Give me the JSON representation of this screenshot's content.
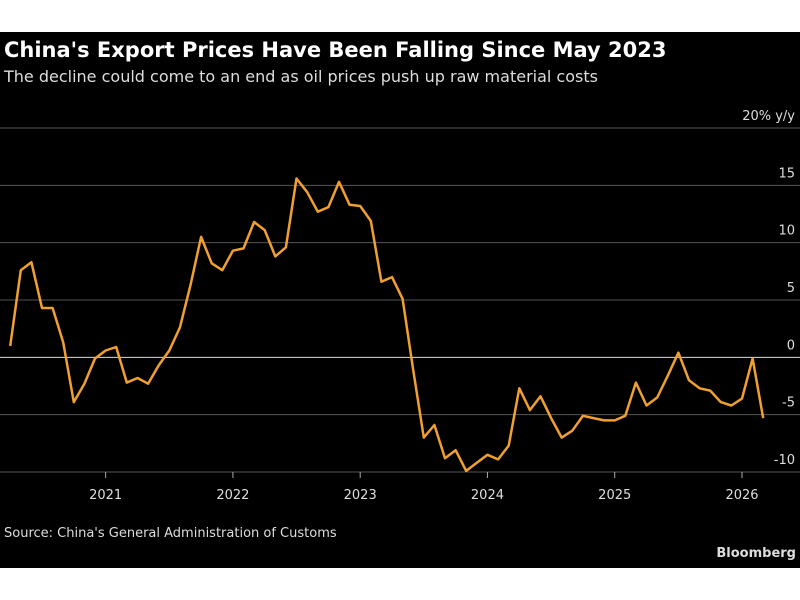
{
  "chart_data": {
    "type": "line",
    "title": "China's Export Prices Have Been Falling Since May 2023",
    "subtitle": "The decline could come to an end as oil prices push up raw material costs",
    "source": "Source: China's General Administration of Customs",
    "brand": "Bloomberg",
    "x": [
      "2020-04",
      "2020-05",
      "2020-06",
      "2020-07",
      "2020-08",
      "2020-09",
      "2020-10",
      "2020-11",
      "2020-12",
      "2021-01",
      "2021-02",
      "2021-03",
      "2021-04",
      "2021-05",
      "2021-06",
      "2021-07",
      "2021-08",
      "2021-09",
      "2021-10",
      "2021-11",
      "2021-12",
      "2022-01",
      "2022-02",
      "2022-03",
      "2022-04",
      "2022-05",
      "2022-06",
      "2022-07",
      "2022-08",
      "2022-09",
      "2022-10",
      "2022-11",
      "2022-12",
      "2023-01",
      "2023-02",
      "2023-03",
      "2023-04",
      "2023-05",
      "2023-06",
      "2023-07",
      "2023-08",
      "2023-09",
      "2023-10",
      "2023-11",
      "2023-12",
      "2024-01",
      "2024-02",
      "2024-03",
      "2024-04",
      "2024-05",
      "2024-06",
      "2024-07",
      "2024-08",
      "2024-09",
      "2024-10",
      "2024-11",
      "2024-12",
      "2025-01",
      "2025-02",
      "2025-03",
      "2025-04",
      "2025-05",
      "2025-06",
      "2025-07",
      "2025-08",
      "2025-09",
      "2025-10",
      "2025-11",
      "2025-12",
      "2026-01",
      "2026-02",
      "2026-03"
    ],
    "series": [
      {
        "name": "Export prices",
        "color": "#f0a030",
        "values": [
          1.0,
          7.6,
          8.3,
          4.3,
          4.3,
          1.3,
          -3.9,
          -2.3,
          -0.1,
          0.6,
          0.9,
          -2.2,
          -1.8,
          -2.3,
          -0.7,
          0.6,
          2.6,
          6.3,
          10.5,
          8.2,
          7.6,
          9.3,
          9.5,
          11.8,
          11.1,
          8.8,
          9.6,
          15.6,
          14.4,
          12.7,
          13.1,
          15.3,
          13.3,
          13.2,
          11.9,
          6.6,
          7.0,
          5.1,
          -1.1,
          -7.0,
          -5.9,
          -8.8,
          -8.1,
          -9.9,
          -9.2,
          -8.5,
          -8.9,
          -7.7,
          -2.7,
          -4.6,
          -3.4,
          -5.3,
          -7.0,
          -6.4,
          -5.1,
          -5.3,
          -5.5,
          -5.5,
          -5.1,
          -2.2,
          -4.2,
          -3.5,
          -1.6,
          0.4,
          -2.0,
          -2.7,
          -2.9,
          -3.9,
          -4.2,
          -3.6,
          -0.1,
          -5.3
        ]
      }
    ],
    "xlim": [
      2020.17,
      2026.22
    ],
    "xticks": [
      2021,
      2022,
      2023,
      2024,
      2025,
      2026
    ],
    "ylim": [
      -10,
      20
    ],
    "yticks": [
      {
        "value": 20,
        "label": "20% y/y"
      },
      15,
      10,
      5,
      0,
      -5,
      -10
    ],
    "grid": true
  }
}
